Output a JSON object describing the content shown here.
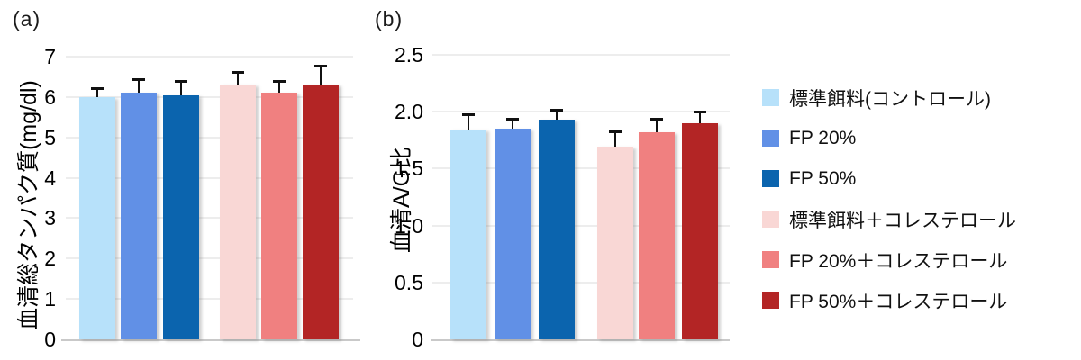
{
  "legend": {
    "items": [
      {
        "label": "標準餌料(コントロール)",
        "color": "#B7E1FA"
      },
      {
        "label": "FP 20%",
        "color": "#6190E6"
      },
      {
        "label": "FP 50%",
        "color": "#0B64AE"
      },
      {
        "label": "標準餌料＋コレステロール",
        "color": "#F9D7D5"
      },
      {
        "label": "FP 20%＋コレステロール",
        "color": "#F08080"
      },
      {
        "label": "FP 50%＋コレステロール",
        "color": "#B32525"
      }
    ]
  },
  "chart_data": [
    {
      "type": "bar",
      "panel_label": "(a)",
      "title": "",
      "xlabel": "",
      "ylabel": "血清総タンパク質(mg/dl)",
      "ylim": [
        0,
        7
      ],
      "yticks": [
        "0",
        "1",
        "2",
        "3",
        "4",
        "5",
        "6",
        "7"
      ],
      "grid": true,
      "categories": [
        "標準餌料(コントロール)",
        "FP 20%",
        "FP 50%",
        "標準餌料＋コレステロール",
        "FP 20%＋コレステロール",
        "FP 50%＋コレステロール"
      ],
      "values": [
        6.0,
        6.1,
        6.05,
        6.3,
        6.1,
        6.3
      ],
      "errors": [
        0.2,
        0.32,
        0.32,
        0.3,
        0.27,
        0.45
      ],
      "colors": [
        "#B7E1FA",
        "#6190E6",
        "#0B64AE",
        "#F9D7D5",
        "#F08080",
        "#B32525"
      ]
    },
    {
      "type": "bar",
      "panel_label": "(b)",
      "title": "",
      "xlabel": "",
      "ylabel": "血清A/G比",
      "ylim": [
        0,
        2.5
      ],
      "yticks": [
        "0",
        "0.5",
        "1.0",
        "1.5",
        "2.0",
        "2.5"
      ],
      "grid": true,
      "categories": [
        "標準餌料(コントロール)",
        "FP 20%",
        "FP 50%",
        "標準餌料＋コレステロール",
        "FP 20%＋コレステロール",
        "FP 50%＋コレステロール"
      ],
      "values": [
        1.84,
        1.85,
        1.93,
        1.69,
        1.82,
        1.9
      ],
      "errors": [
        0.13,
        0.08,
        0.08,
        0.13,
        0.11,
        0.09
      ],
      "colors": [
        "#B7E1FA",
        "#6190E6",
        "#0B64AE",
        "#F9D7D5",
        "#F08080",
        "#B32525"
      ]
    }
  ]
}
